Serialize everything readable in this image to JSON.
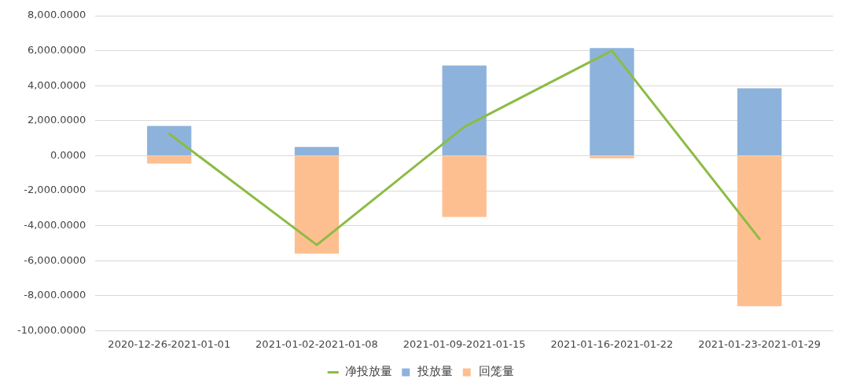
{
  "chart_data": {
    "type": "bar",
    "stacked": true,
    "categories": [
      "2020-12-26-2021-01-01",
      "2021-01-02-2021-01-08",
      "2021-01-09-2021-01-15",
      "2021-01-16-2021-01-22",
      "2021-01-23-2021-01-29"
    ],
    "series": [
      {
        "name": "投放量",
        "color": "#8db3dc",
        "values": [
          1700,
          500,
          5150,
          6150,
          3850
        ]
      },
      {
        "name": "回笼量",
        "color": "#fdbf8f",
        "values": [
          -450,
          -5600,
          -3500,
          -150,
          -8600
        ]
      },
      {
        "name": "净投放量",
        "type": "line",
        "color": "#8cbc45",
        "values": [
          1250,
          -5100,
          1650,
          6000,
          -4750
        ]
      }
    ],
    "ylim": [
      -10000,
      8000
    ],
    "yticks": [
      {
        "value": -10000,
        "label": "-10,000.0000"
      },
      {
        "value": -8000,
        "label": "-8,000.0000"
      },
      {
        "value": -6000,
        "label": "-6,000.0000"
      },
      {
        "value": -4000,
        "label": "-4,000.0000"
      },
      {
        "value": -2000,
        "label": "-2,000.0000"
      },
      {
        "value": 0,
        "label": "0.0000"
      },
      {
        "value": 2000,
        "label": "2,000.0000"
      },
      {
        "value": 4000,
        "label": "4,000.0000"
      },
      {
        "value": 6000,
        "label": "6,000.0000"
      },
      {
        "value": 8000,
        "label": "8,000.0000"
      }
    ],
    "grid": "y",
    "legend": "bottom",
    "marker": "none",
    "line_style": "solid"
  }
}
